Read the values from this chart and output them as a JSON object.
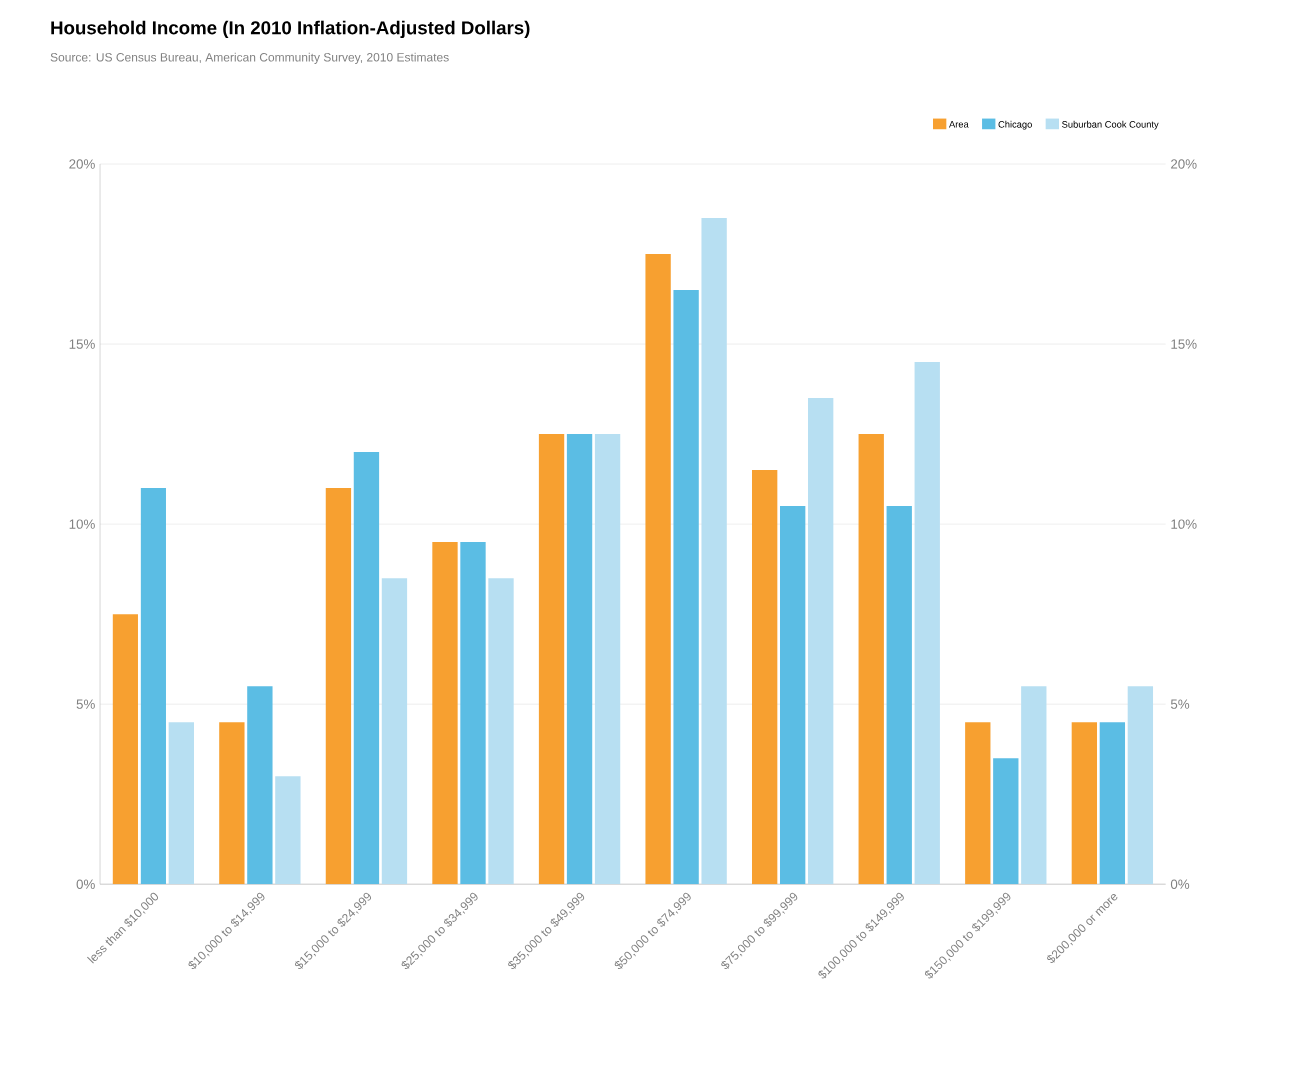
{
  "chart_data": {
    "type": "bar",
    "title": "Household Income (In 2010 Inflation-Adjusted Dollars)",
    "subtitle": "Source: US Census Bureau, American Community Survey, 2010 Estimates",
    "categories": [
      "less than $10,000",
      "$10,000 to $14,999",
      "$15,000 to $24,999",
      "$25,000 to $34,999",
      "$35,000 to $49,999",
      "$50,000 to $74,999",
      "$75,000 to $99,999",
      "$100,000 to $149,999",
      "$150,000 to $199,999",
      "$200,000 or more"
    ],
    "series": [
      {
        "name": "Area",
        "color": "#f7a030",
        "values": [
          7.5,
          4.5,
          11,
          9.5,
          12.5,
          17.5,
          11.5,
          12.5,
          4.5,
          4.5
        ]
      },
      {
        "name": "Chicago",
        "color": "#5bbde4",
        "values": [
          11,
          5.5,
          12,
          9.5,
          12.5,
          16.5,
          10.5,
          10.5,
          3.5,
          4.5
        ]
      },
      {
        "name": "Suburban Cook County",
        "color": "#b7dff2",
        "values": [
          4.5,
          3,
          8.5,
          8.5,
          12.5,
          18.5,
          13.5,
          14.5,
          5.5,
          5.5
        ]
      }
    ],
    "ylim": [
      0,
      20
    ],
    "yticks": [
      {
        "value": 0,
        "label": "0%"
      },
      {
        "value": 5,
        "label": "5%"
      },
      {
        "value": 10,
        "label": "10%"
      },
      {
        "value": 15,
        "label": "15%"
      },
      {
        "value": 20,
        "label": "20%"
      }
    ],
    "y2lim": [
      0,
      20
    ],
    "y2ticks": [
      {
        "value": 0,
        "label": "0%"
      },
      {
        "value": 5,
        "label": "5%"
      },
      {
        "value": 10,
        "label": "10%"
      },
      {
        "value": 15,
        "label": "15%"
      },
      {
        "value": 20,
        "label": "20%"
      }
    ],
    "grid": "y",
    "legend": "top right"
  }
}
